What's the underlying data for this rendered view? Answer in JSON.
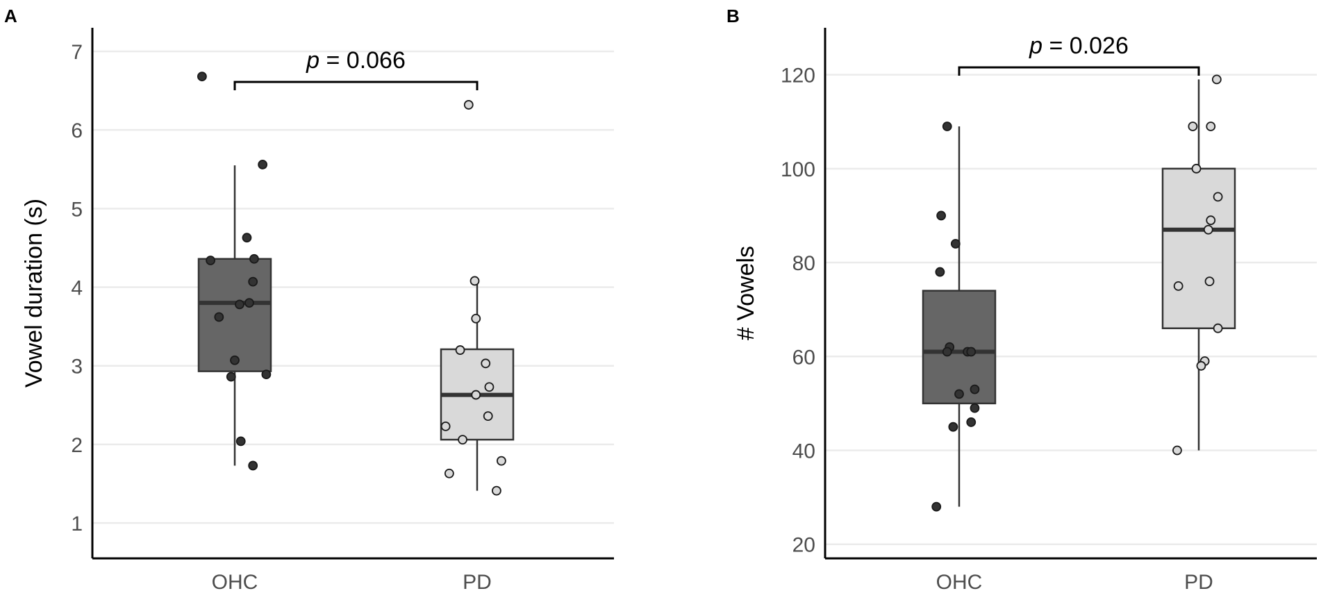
{
  "chart_data": [
    {
      "panel": "A",
      "type": "box",
      "ylabel": "Vowel duration (s)",
      "xlabel": "",
      "categories": [
        "OHC",
        "PD"
      ],
      "ylim": [
        0.55,
        7.3
      ],
      "yticks": [
        1,
        2,
        3,
        4,
        5,
        6,
        7
      ],
      "grid": true,
      "annotation": {
        "label": "p",
        "text": " = 0.066"
      },
      "boxes": [
        {
          "group": "OHC",
          "q1": 2.93,
          "median": 3.8,
          "q3": 4.36,
          "whisker_low": 1.73,
          "whisker_high": 5.55,
          "fill": "#666666"
        },
        {
          "group": "PD",
          "q1": 2.06,
          "median": 2.63,
          "q3": 3.21,
          "whisker_low": 1.41,
          "whisker_high": 4.08,
          "fill": "#d9d9d9"
        }
      ],
      "points": [
        {
          "group": "OHC",
          "fill": "#333333",
          "values": [
            6.68,
            5.56,
            4.63,
            4.34,
            4.36,
            4.07,
            3.8,
            3.78,
            3.62,
            3.07,
            2.86,
            2.89,
            2.04,
            1.73
          ],
          "jitter": [
            -0.27,
            0.23,
            0.1,
            -0.2,
            0.16,
            0.15,
            0.12,
            0.04,
            -0.13,
            0.0,
            -0.03,
            0.26,
            0.05,
            0.15
          ]
        },
        {
          "group": "PD",
          "fill": "#d9d9d9",
          "values": [
            6.32,
            4.08,
            3.6,
            3.2,
            3.03,
            2.73,
            2.63,
            2.36,
            2.23,
            2.06,
            1.79,
            1.63,
            1.41
          ],
          "jitter": [
            -0.07,
            -0.02,
            -0.01,
            -0.14,
            0.07,
            0.1,
            -0.01,
            0.09,
            -0.26,
            -0.12,
            0.2,
            -0.23,
            0.16
          ]
        }
      ]
    },
    {
      "panel": "B",
      "type": "box",
      "ylabel": "# Vowels",
      "xlabel": "",
      "categories": [
        "OHC",
        "PD"
      ],
      "ylim": [
        17,
        130
      ],
      "yticks": [
        20,
        40,
        60,
        80,
        100,
        120
      ],
      "grid": true,
      "annotation": {
        "label": "p",
        "text": " = 0.026"
      },
      "boxes": [
        {
          "group": "OHC",
          "q1": 50,
          "median": 61,
          "q3": 74,
          "whisker_low": 28,
          "whisker_high": 109,
          "fill": "#666666"
        },
        {
          "group": "PD",
          "q1": 66,
          "median": 87,
          "q3": 100,
          "whisker_low": 40,
          "whisker_high": 119,
          "fill": "#d9d9d9"
        }
      ],
      "points": [
        {
          "group": "OHC",
          "fill": "#333333",
          "values": [
            109,
            90,
            84,
            78,
            62,
            61,
            61,
            61,
            53,
            52,
            49,
            46,
            45,
            28
          ],
          "jitter": [
            -0.1,
            -0.15,
            -0.03,
            -0.16,
            -0.08,
            -0.1,
            0.07,
            0.1,
            0.13,
            0.0,
            0.13,
            0.1,
            -0.05,
            -0.19
          ]
        },
        {
          "group": "PD",
          "fill": "#d9d9d9",
          "values": [
            119,
            109,
            109,
            100,
            94,
            89,
            87,
            76,
            75,
            66,
            59,
            58,
            40
          ],
          "jitter": [
            0.15,
            -0.05,
            0.1,
            -0.02,
            0.16,
            0.1,
            0.08,
            0.09,
            -0.17,
            0.16,
            0.05,
            0.02,
            -0.18
          ]
        }
      ]
    }
  ]
}
